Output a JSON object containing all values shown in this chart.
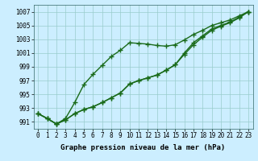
{
  "x": [
    0,
    1,
    2,
    3,
    4,
    5,
    6,
    7,
    8,
    9,
    10,
    11,
    12,
    13,
    14,
    15,
    16,
    17,
    18,
    19,
    20,
    21,
    22,
    23
  ],
  "line1": [
    992.2,
    991.5,
    990.7,
    991.5,
    993.8,
    996.4,
    997.9,
    999.2,
    1000.5,
    1001.4,
    1002.5,
    1002.4,
    1002.3,
    1002.1,
    1002.0,
    1002.2,
    1002.9,
    1003.7,
    1004.3,
    1005.0,
    1005.4,
    1005.8,
    1006.4,
    1007.0
  ],
  "line2": [
    992.2,
    991.5,
    990.7,
    991.3,
    992.2,
    992.8,
    993.2,
    993.8,
    994.5,
    995.2,
    996.5,
    997.0,
    997.4,
    997.8,
    998.5,
    999.3,
    1000.8,
    1002.2,
    1003.3,
    1004.3,
    1004.9,
    1005.4,
    1006.1,
    1007.0
  ],
  "line3": [
    992.2,
    991.5,
    990.7,
    991.3,
    992.2,
    992.8,
    993.2,
    993.8,
    994.5,
    995.2,
    996.5,
    997.0,
    997.4,
    997.8,
    998.5,
    999.3,
    1001.0,
    1002.5,
    1003.5,
    1004.5,
    1005.0,
    1005.5,
    1006.2,
    1007.0
  ],
  "ylim": [
    990.0,
    1008.0
  ],
  "yticks": [
    991,
    993,
    995,
    997,
    999,
    1001,
    1003,
    1005,
    1007
  ],
  "xticks": [
    0,
    1,
    2,
    3,
    4,
    5,
    6,
    7,
    8,
    9,
    10,
    11,
    12,
    13,
    14,
    15,
    16,
    17,
    18,
    19,
    20,
    21,
    22,
    23
  ],
  "xlabel": "Graphe pression niveau de la mer (hPa)",
  "bg_color": "#cceeff",
  "grid_color": "#99cccc",
  "line_color": "#1a6b1a",
  "marker": "+",
  "marker_size": 4.0,
  "line_width": 1.0,
  "xlabel_fontsize": 6.5,
  "tick_fontsize": 5.5
}
